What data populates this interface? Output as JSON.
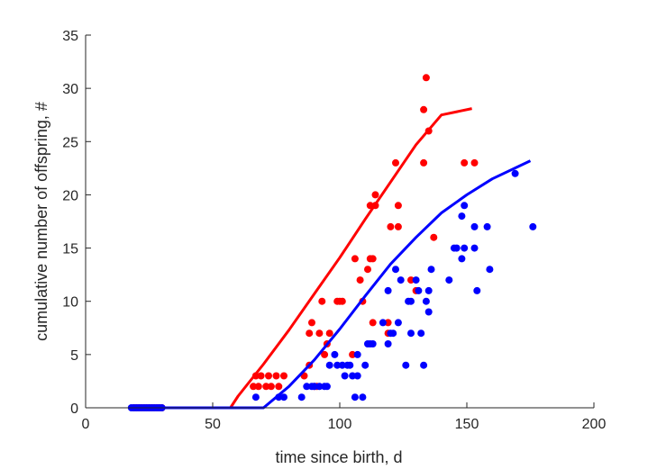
{
  "chart_data": {
    "type": "scatter",
    "title": "",
    "xlabel": "time since birth, d",
    "ylabel": "cumulative number of offspring, #",
    "xlim": [
      0,
      200
    ],
    "ylim": [
      0,
      35
    ],
    "xticks": [
      0,
      50,
      100,
      150,
      200
    ],
    "yticks": [
      0,
      5,
      10,
      15,
      20,
      25,
      30,
      35
    ],
    "grid": false,
    "legend": "none",
    "series": [
      {
        "color": "#ff0000",
        "points": [
          [
            19,
            0
          ],
          [
            20,
            0
          ],
          [
            21,
            0
          ],
          [
            22,
            0
          ],
          [
            23,
            0
          ],
          [
            24,
            0
          ],
          [
            25,
            0
          ],
          [
            26,
            0
          ],
          [
            27,
            0
          ],
          [
            28,
            0
          ],
          [
            29,
            0
          ],
          [
            30,
            0
          ],
          [
            66,
            2
          ],
          [
            67,
            3
          ],
          [
            68,
            2
          ],
          [
            69,
            3
          ],
          [
            71,
            2
          ],
          [
            72,
            3
          ],
          [
            73,
            2
          ],
          [
            75,
            3
          ],
          [
            76,
            2
          ],
          [
            78,
            3
          ],
          [
            86,
            3
          ],
          [
            88,
            4
          ],
          [
            88,
            7
          ],
          [
            89,
            8
          ],
          [
            90,
            2
          ],
          [
            91,
            2
          ],
          [
            92,
            7
          ],
          [
            93,
            10
          ],
          [
            94,
            5
          ],
          [
            95,
            6
          ],
          [
            96,
            7
          ],
          [
            99,
            10
          ],
          [
            100,
            10
          ],
          [
            101,
            10
          ],
          [
            105,
            5
          ],
          [
            106,
            14
          ],
          [
            108,
            12
          ],
          [
            109,
            10
          ],
          [
            111,
            13
          ],
          [
            112,
            19
          ],
          [
            112,
            14
          ],
          [
            113,
            14
          ],
          [
            113,
            8
          ],
          [
            114,
            19
          ],
          [
            114,
            20
          ],
          [
            119,
            8
          ],
          [
            119,
            7
          ],
          [
            120,
            17
          ],
          [
            122,
            23
          ],
          [
            123,
            17
          ],
          [
            123,
            19
          ],
          [
            128,
            12
          ],
          [
            130,
            11
          ],
          [
            133,
            23
          ],
          [
            133,
            28
          ],
          [
            134,
            31
          ],
          [
            135,
            26
          ],
          [
            137,
            16
          ],
          [
            149,
            23
          ],
          [
            153,
            23
          ]
        ],
        "fit": [
          [
            57,
            0
          ],
          [
            60,
            1.1
          ],
          [
            70,
            4.1
          ],
          [
            80,
            7.3
          ],
          [
            90,
            10.7
          ],
          [
            100,
            14.1
          ],
          [
            110,
            17.7
          ],
          [
            120,
            21.2
          ],
          [
            130,
            24.7
          ],
          [
            140,
            27.5
          ],
          [
            152,
            28.1
          ]
        ]
      },
      {
        "color": "#0000ff",
        "points": [
          [
            18,
            0
          ],
          [
            19,
            0
          ],
          [
            20,
            0
          ],
          [
            21,
            0
          ],
          [
            22,
            0
          ],
          [
            23,
            0
          ],
          [
            24,
            0
          ],
          [
            25,
            0
          ],
          [
            26,
            0
          ],
          [
            27,
            0
          ],
          [
            28,
            0
          ],
          [
            29,
            0
          ],
          [
            30,
            0
          ],
          [
            67,
            1
          ],
          [
            76,
            1
          ],
          [
            78,
            1
          ],
          [
            85,
            1
          ],
          [
            87,
            2
          ],
          [
            89,
            2
          ],
          [
            90,
            2
          ],
          [
            92,
            2
          ],
          [
            94,
            2
          ],
          [
            95,
            2
          ],
          [
            96,
            4
          ],
          [
            98,
            5
          ],
          [
            99,
            4
          ],
          [
            101,
            4
          ],
          [
            102,
            3
          ],
          [
            103,
            4
          ],
          [
            104,
            4
          ],
          [
            105,
            3
          ],
          [
            106,
            1
          ],
          [
            107,
            3
          ],
          [
            107,
            5
          ],
          [
            109,
            1
          ],
          [
            110,
            4
          ],
          [
            111,
            6
          ],
          [
            112,
            6
          ],
          [
            113,
            6
          ],
          [
            117,
            8
          ],
          [
            119,
            11
          ],
          [
            119,
            6
          ],
          [
            120,
            7
          ],
          [
            121,
            7
          ],
          [
            122,
            13
          ],
          [
            123,
            8
          ],
          [
            124,
            12
          ],
          [
            126,
            4
          ],
          [
            127,
            10
          ],
          [
            128,
            7
          ],
          [
            128,
            10
          ],
          [
            130,
            12
          ],
          [
            131,
            11
          ],
          [
            132,
            7
          ],
          [
            133,
            4
          ],
          [
            134,
            10
          ],
          [
            135,
            9
          ],
          [
            135,
            11
          ],
          [
            136,
            13
          ],
          [
            143,
            12
          ],
          [
            145,
            15
          ],
          [
            146,
            15
          ],
          [
            148,
            18
          ],
          [
            148,
            14
          ],
          [
            149,
            19
          ],
          [
            149,
            15
          ],
          [
            153,
            17
          ],
          [
            153,
            15
          ],
          [
            154,
            11
          ],
          [
            158,
            17
          ],
          [
            159,
            13
          ],
          [
            169,
            22
          ],
          [
            176,
            17
          ]
        ],
        "fit": [
          [
            18,
            0
          ],
          [
            30,
            0
          ],
          [
            50,
            0
          ],
          [
            70,
            0
          ],
          [
            80,
            2.0
          ],
          [
            90,
            4.5
          ],
          [
            100,
            7.4
          ],
          [
            110,
            10.5
          ],
          [
            120,
            13.5
          ],
          [
            130,
            16.0
          ],
          [
            140,
            18.3
          ],
          [
            150,
            20.0
          ],
          [
            160,
            21.5
          ],
          [
            175,
            23.2
          ]
        ]
      }
    ]
  }
}
